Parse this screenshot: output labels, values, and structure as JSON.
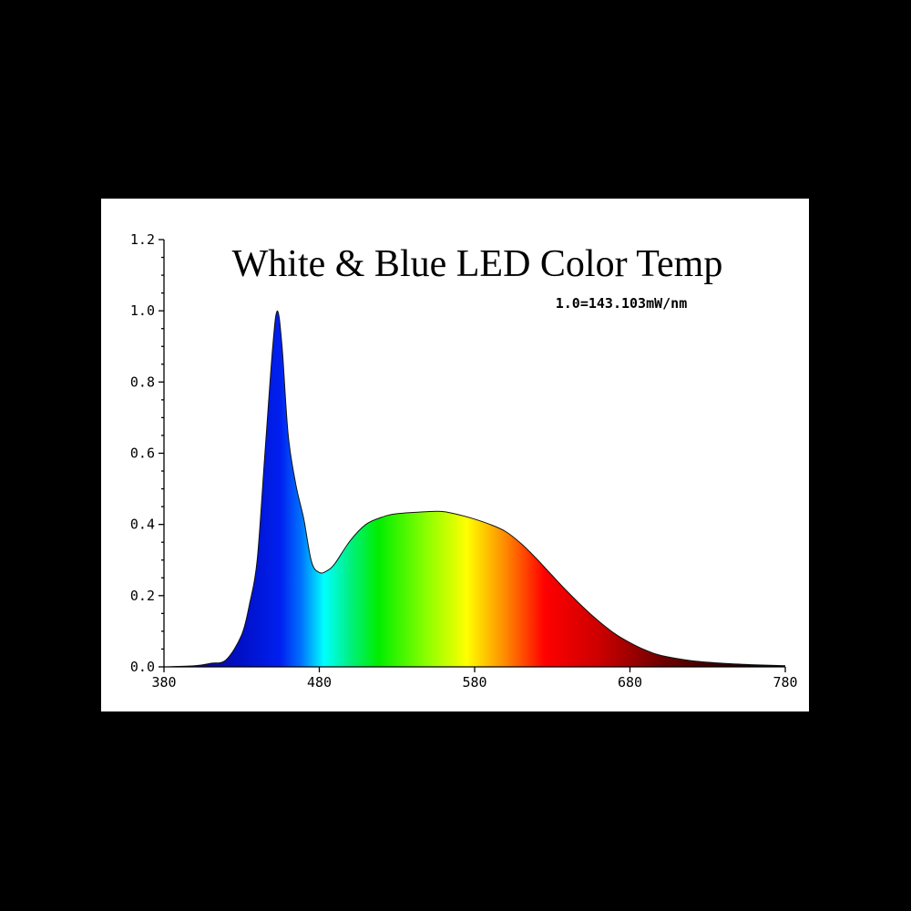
{
  "chart_data": {
    "type": "area",
    "title": "White & Blue LED Color Temp",
    "annotation": "1.0=143.103mW/nm",
    "xlabel": "",
    "ylabel": "",
    "xlim": [
      380,
      780
    ],
    "ylim": [
      0,
      1.2
    ],
    "x_ticks": [
      "380",
      "480",
      "580",
      "680",
      "780"
    ],
    "y_ticks": [
      "0.0",
      "0.2",
      "0.4",
      "0.6",
      "0.8",
      "1.0",
      "1.2"
    ],
    "grid": false,
    "fill": "visible-spectrum gradient",
    "x": [
      380,
      400,
      410,
      420,
      430,
      435,
      440,
      445,
      450,
      453,
      456,
      460,
      465,
      470,
      475,
      480,
      485,
      490,
      500,
      510,
      520,
      530,
      550,
      560,
      570,
      580,
      590,
      600,
      610,
      620,
      630,
      640,
      650,
      660,
      670,
      680,
      690,
      700,
      720,
      740,
      760,
      780
    ],
    "y": [
      0,
      0.003,
      0.01,
      0.02,
      0.09,
      0.175,
      0.3,
      0.6,
      0.9,
      1.0,
      0.9,
      0.65,
      0.51,
      0.415,
      0.295,
      0.265,
      0.27,
      0.29,
      0.355,
      0.4,
      0.42,
      0.43,
      0.436,
      0.436,
      0.427,
      0.415,
      0.4,
      0.38,
      0.346,
      0.303,
      0.256,
      0.21,
      0.167,
      0.128,
      0.094,
      0.068,
      0.047,
      0.032,
      0.017,
      0.01,
      0.006,
      0.003
    ],
    "color_stops": [
      {
        "wavelength": 380,
        "color": "#1a0066"
      },
      {
        "wavelength": 430,
        "color": "#0010c8"
      },
      {
        "wavelength": 455,
        "color": "#0020f0"
      },
      {
        "wavelength": 468,
        "color": "#0070ff"
      },
      {
        "wavelength": 483,
        "color": "#00ffff"
      },
      {
        "wavelength": 500,
        "color": "#00f080"
      },
      {
        "wavelength": 518,
        "color": "#00ee00"
      },
      {
        "wavelength": 550,
        "color": "#90ff00"
      },
      {
        "wavelength": 575,
        "color": "#ffff00"
      },
      {
        "wavelength": 600,
        "color": "#ff8800"
      },
      {
        "wavelength": 625,
        "color": "#ff0000"
      },
      {
        "wavelength": 660,
        "color": "#cc0000"
      },
      {
        "wavelength": 700,
        "color": "#700000"
      },
      {
        "wavelength": 750,
        "color": "#200000"
      },
      {
        "wavelength": 780,
        "color": "#000000"
      }
    ]
  },
  "colors": {
    "background": "#000000",
    "panel": "#ffffff",
    "axis": "#000000"
  }
}
